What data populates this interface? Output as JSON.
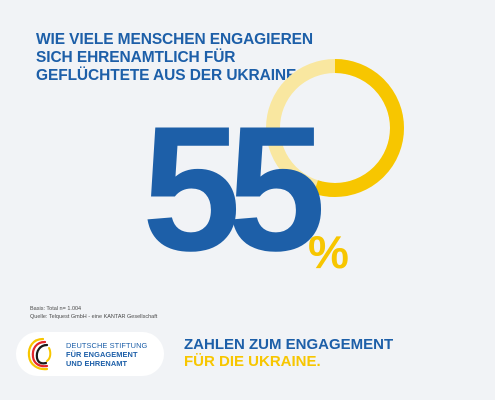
{
  "question": {
    "line1": "WIE VIELE MENSCHEN ENGAGIEREN",
    "line2": "SICH EHRENAMTLICH FÜR",
    "line3": "GEFLÜCHTETE AUS DER UKRAINE?"
  },
  "stat": {
    "value": "55",
    "unit": "%",
    "ring_fraction": 0.55
  },
  "source": {
    "basis": "Basis: Total n= 1.004",
    "source_line": "Quelle: Telquest GmbH - eine KANTAR Gesellschaft"
  },
  "logo": {
    "line1": "DEUTSCHE STIFTUNG",
    "line2": "FÜR ENGAGEMENT",
    "line3": "UND EHRENAMT",
    "icon": "foundation-logo-icon"
  },
  "footer": {
    "line1": "ZAHLEN ZUM ENGAGEMENT",
    "line2": "FÜR DIE UKRAINE."
  },
  "colors": {
    "blue": "#1d5fa8",
    "yellow": "#f7c600",
    "pale_yellow": "#f9e7a0",
    "background": "#f1f3f6"
  }
}
